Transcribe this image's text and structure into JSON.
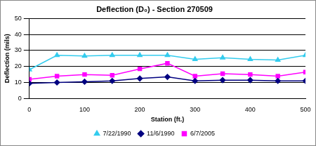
{
  "chart_data": {
    "type": "line",
    "title": "Deflection (D₀) - Section 270509",
    "x_label": "Station (ft.)",
    "y_label": "Deflection (mils)",
    "x": [
      0,
      50,
      100,
      150,
      200,
      250,
      300,
      350,
      400,
      450,
      500
    ],
    "series": [
      {
        "name": "7/22/1990",
        "color": "#33ccee",
        "marker": "triangle",
        "values": [
          18,
          27,
          26.5,
          27,
          27,
          27,
          24.5,
          25.5,
          24.5,
          24,
          27
        ]
      },
      {
        "name": "11/6/1990",
        "color": "#000080",
        "marker": "diamond",
        "values": [
          9.5,
          10,
          10.5,
          11,
          12.5,
          13.5,
          11,
          11.5,
          11.5,
          11,
          11
        ]
      },
      {
        "name": "6/7/2005",
        "color": "#ff00ff",
        "marker": "square",
        "values": [
          12,
          14,
          15,
          14.5,
          18.5,
          22,
          14,
          15.5,
          15,
          14,
          16.5
        ]
      }
    ],
    "xlim": [
      0,
      500
    ],
    "xticks": [
      0,
      100,
      200,
      300,
      400,
      500
    ],
    "ylim": [
      0,
      50
    ],
    "yticks": [
      0,
      10,
      20,
      30,
      40,
      50
    ],
    "grid": true,
    "legend": "bottom"
  }
}
